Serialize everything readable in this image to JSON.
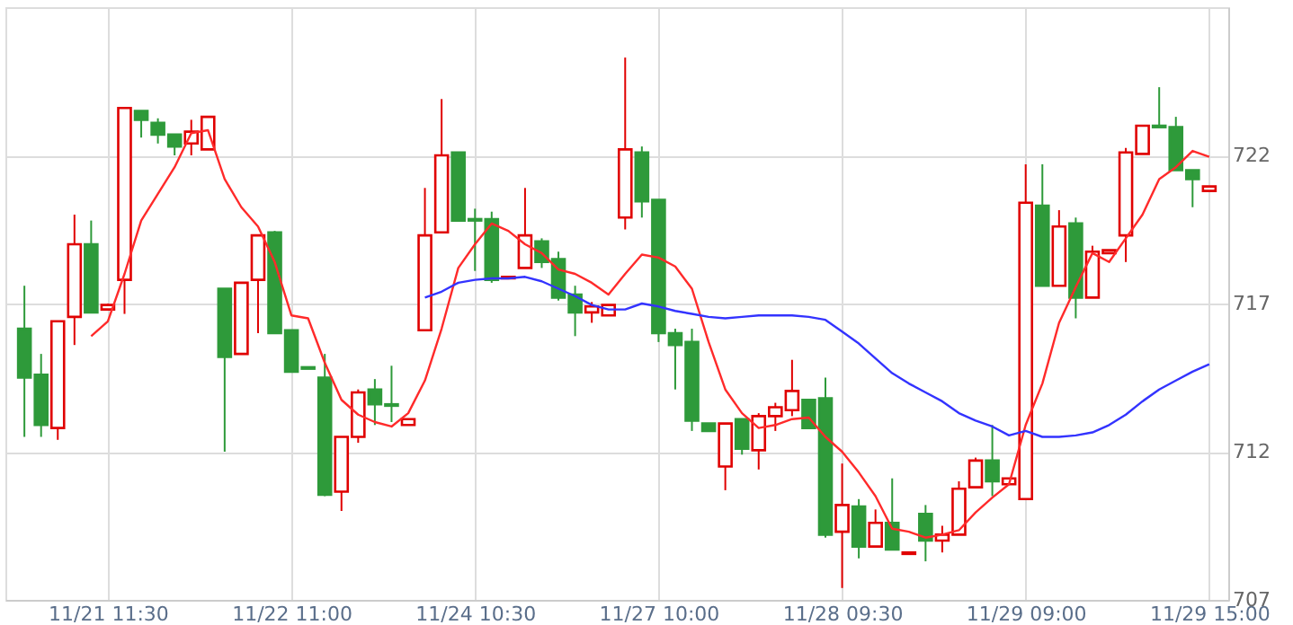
{
  "chart_data": {
    "type": "candlestick",
    "categories": [
      null,
      null,
      null,
      null,
      null,
      "11/21 11:30",
      null,
      null,
      null,
      null,
      null,
      null,
      null,
      null,
      null,
      null,
      "11/22 11:00",
      null,
      null,
      null,
      null,
      null,
      null,
      null,
      null,
      null,
      null,
      "11/24 10:30",
      null,
      null,
      null,
      null,
      null,
      null,
      null,
      null,
      null,
      null,
      "11/27 10:00",
      null,
      null,
      null,
      null,
      null,
      null,
      null,
      null,
      null,
      null,
      "11/28 09:30",
      null,
      null,
      null,
      null,
      null,
      null,
      null,
      null,
      null,
      null,
      "11/29 09:00",
      null,
      null,
      null,
      null,
      null,
      null,
      null,
      null,
      null,
      null,
      "11/29 15:00"
    ],
    "ohlc": [
      [
        716.15,
        717.6,
        712.5,
        714.5
      ],
      [
        714.6,
        715.3,
        712.5,
        712.9
      ],
      [
        712.8,
        716.4,
        712.4,
        716.4
      ],
      [
        716.55,
        720.0,
        715.6,
        719.0
      ],
      [
        719.0,
        719.8,
        716.7,
        716.7
      ],
      [
        716.8,
        717.0,
        716.8,
        716.95
      ],
      [
        717.8,
        723.6,
        716.65,
        723.6
      ],
      [
        723.5,
        723.5,
        722.6,
        723.2
      ],
      [
        723.1,
        723.25,
        722.4,
        722.7
      ],
      [
        722.7,
        722.7,
        722.0,
        722.3
      ],
      [
        722.4,
        723.2,
        722.0,
        722.8
      ],
      [
        722.2,
        723.3,
        722.2,
        723.3
      ],
      [
        717.5,
        717.5,
        712.0,
        715.2
      ],
      [
        715.3,
        717.7,
        715.3,
        717.7
      ],
      [
        717.8,
        719.3,
        716.0,
        719.3
      ],
      [
        719.4,
        719.45,
        716.0,
        716.0
      ],
      [
        716.1,
        716.1,
        714.7,
        714.7
      ],
      [
        714.85,
        714.85,
        714.8,
        714.8
      ],
      [
        714.5,
        715.3,
        710.5,
        710.55
      ],
      [
        710.65,
        712.5,
        710.0,
        712.5
      ],
      [
        712.5,
        714.1,
        712.3,
        714.0
      ],
      [
        714.1,
        714.45,
        712.9,
        713.6
      ],
      [
        713.6,
        714.9,
        713.0,
        713.55
      ],
      [
        712.9,
        713.1,
        712.9,
        713.1
      ],
      [
        716.1,
        720.9,
        716.1,
        719.3
      ],
      [
        719.4,
        723.9,
        719.4,
        722.0
      ],
      [
        722.1,
        722.1,
        719.8,
        719.8
      ],
      [
        719.85,
        720.2,
        718.1,
        719.8
      ],
      [
        719.85,
        720.1,
        717.7,
        717.8
      ],
      [
        717.85,
        717.9,
        717.85,
        717.9
      ],
      [
        718.2,
        720.9,
        718.2,
        719.3
      ],
      [
        719.1,
        719.2,
        718.2,
        718.4
      ],
      [
        718.5,
        718.75,
        717.1,
        717.2
      ],
      [
        717.3,
        717.6,
        715.9,
        716.7
      ],
      [
        716.7,
        717.05,
        716.35,
        716.9
      ],
      [
        716.6,
        716.95,
        716.6,
        716.95
      ],
      [
        719.9,
        725.3,
        719.5,
        722.2
      ],
      [
        722.1,
        722.3,
        719.9,
        720.45
      ],
      [
        720.5,
        720.5,
        715.7,
        716.0
      ],
      [
        716.0,
        716.15,
        714.1,
        715.6
      ],
      [
        715.7,
        716.15,
        712.7,
        713.05
      ],
      [
        712.95,
        712.95,
        712.7,
        712.7
      ],
      [
        711.5,
        712.95,
        710.7,
        712.95
      ],
      [
        713.1,
        713.1,
        711.9,
        712.1
      ],
      [
        712.05,
        713.3,
        711.4,
        713.2
      ],
      [
        713.2,
        713.65,
        712.7,
        713.5
      ],
      [
        713.4,
        715.1,
        713.2,
        714.05
      ],
      [
        713.75,
        713.75,
        712.8,
        712.8
      ],
      [
        713.8,
        714.5,
        709.1,
        709.2
      ],
      [
        709.3,
        711.6,
        707.4,
        710.2
      ],
      [
        710.15,
        710.4,
        708.4,
        708.8
      ],
      [
        708.8,
        710.05,
        708.8,
        709.6
      ],
      [
        709.6,
        711.1,
        708.7,
        708.7
      ],
      [
        708.55,
        708.6,
        708.55,
        708.6
      ],
      [
        709.9,
        710.2,
        708.3,
        709.0
      ],
      [
        709.0,
        709.5,
        708.6,
        709.2
      ],
      [
        709.2,
        711.0,
        709.2,
        710.75
      ],
      [
        710.8,
        711.8,
        710.8,
        711.7
      ],
      [
        711.7,
        712.9,
        710.5,
        711.0
      ],
      [
        710.9,
        711.1,
        710.9,
        711.1
      ],
      [
        710.4,
        721.7,
        710.4,
        720.4
      ],
      [
        720.3,
        721.7,
        717.6,
        717.6
      ],
      [
        717.6,
        720.15,
        717.6,
        719.6
      ],
      [
        719.7,
        719.9,
        716.5,
        717.2
      ],
      [
        717.2,
        718.95,
        717.2,
        718.75
      ],
      [
        718.7,
        718.8,
        718.7,
        718.8
      ],
      [
        719.3,
        722.25,
        718.4,
        722.1
      ],
      [
        722.05,
        723.0,
        722.05,
        723.0
      ],
      [
        723.0,
        724.3,
        722.95,
        722.95
      ],
      [
        722.95,
        723.3,
        721.5,
        721.5
      ],
      [
        721.5,
        721.5,
        720.25,
        721.2
      ],
      [
        720.8,
        720.95,
        720.8,
        720.95
      ]
    ],
    "colors": [
      "#2e9a3a",
      "#2e9a3a",
      "#e00000",
      "#e00000",
      "#2e9a3a",
      "#e00000",
      "#e00000",
      "#2e9a3a",
      "#2e9a3a",
      "#2e9a3a",
      "#e00000",
      "#e00000",
      "#2e9a3a",
      "#e00000",
      "#e00000",
      "#2e9a3a",
      "#2e9a3a",
      "#2e9a3a",
      "#2e9a3a",
      "#e00000",
      "#e00000",
      "#2e9a3a",
      "#2e9a3a",
      "#e00000",
      "#e00000",
      "#e00000",
      "#2e9a3a",
      "#2e9a3a",
      "#2e9a3a",
      "#e00000",
      "#e00000",
      "#2e9a3a",
      "#2e9a3a",
      "#2e9a3a",
      "#e00000",
      "#e00000",
      "#e00000",
      "#2e9a3a",
      "#2e9a3a",
      "#2e9a3a",
      "#2e9a3a",
      "#2e9a3a",
      "#e00000",
      "#2e9a3a",
      "#e00000",
      "#e00000",
      "#e00000",
      "#2e9a3a",
      "#2e9a3a",
      "#e00000",
      "#2e9a3a",
      "#e00000",
      "#2e9a3a",
      "#e00000",
      "#2e9a3a",
      "#e00000",
      "#e00000",
      "#e00000",
      "#2e9a3a",
      "#e00000",
      "#e00000",
      "#2e9a3a",
      "#e00000",
      "#2e9a3a",
      "#e00000",
      "#e00000",
      "#e00000",
      "#e00000",
      "#2e9a3a",
      "#2e9a3a",
      "#2e9a3a",
      "#e00000"
    ],
    "series": [
      {
        "type": "line",
        "color": "#ff2a2a",
        "values": [
          null,
          null,
          null,
          null,
          715.9,
          716.4,
          718.0,
          719.8,
          720.7,
          721.6,
          722.75,
          722.85,
          721.2,
          720.25,
          719.6,
          718.4,
          716.6,
          716.5,
          715.0,
          713.75,
          713.25,
          713.0,
          712.85,
          713.3,
          714.4,
          716.15,
          718.2,
          719.0,
          719.7,
          719.45,
          719.0,
          718.7,
          718.15,
          718.0,
          717.7,
          717.3,
          718.0,
          718.65,
          718.55,
          718.25,
          717.5,
          715.7,
          714.1,
          713.3,
          712.8,
          712.9,
          713.1,
          713.15,
          712.5,
          712.0,
          711.3,
          710.5,
          709.4,
          709.3,
          709.1,
          709.2,
          709.35,
          709.95,
          710.45,
          710.9,
          712.9,
          714.3,
          716.35,
          717.55,
          718.7,
          718.4,
          719.2,
          720.0,
          721.2,
          721.6,
          722.15,
          721.95
        ]
      },
      {
        "type": "line",
        "color": "#3333ff",
        "values": [
          null,
          null,
          null,
          null,
          null,
          null,
          null,
          null,
          null,
          null,
          null,
          null,
          null,
          null,
          null,
          null,
          null,
          null,
          null,
          null,
          null,
          null,
          null,
          null,
          717.2,
          717.4,
          717.7,
          717.8,
          717.85,
          717.85,
          717.9,
          717.75,
          717.5,
          717.25,
          716.95,
          716.8,
          716.8,
          717.0,
          716.9,
          716.75,
          716.65,
          716.55,
          716.5,
          716.55,
          716.6,
          716.6,
          716.6,
          716.55,
          716.45,
          716.05,
          715.65,
          715.15,
          714.65,
          714.3,
          714.0,
          713.7,
          713.3,
          713.05,
          712.85,
          712.55,
          712.7,
          712.5,
          712.5,
          712.55,
          712.65,
          712.9,
          713.25,
          713.7,
          714.1,
          714.4,
          714.7,
          714.95
        ]
      }
    ],
    "ylim": [
      707,
      727
    ],
    "yticks": [
      707,
      712,
      717,
      722
    ],
    "grid": true,
    "line_style": "solid"
  }
}
